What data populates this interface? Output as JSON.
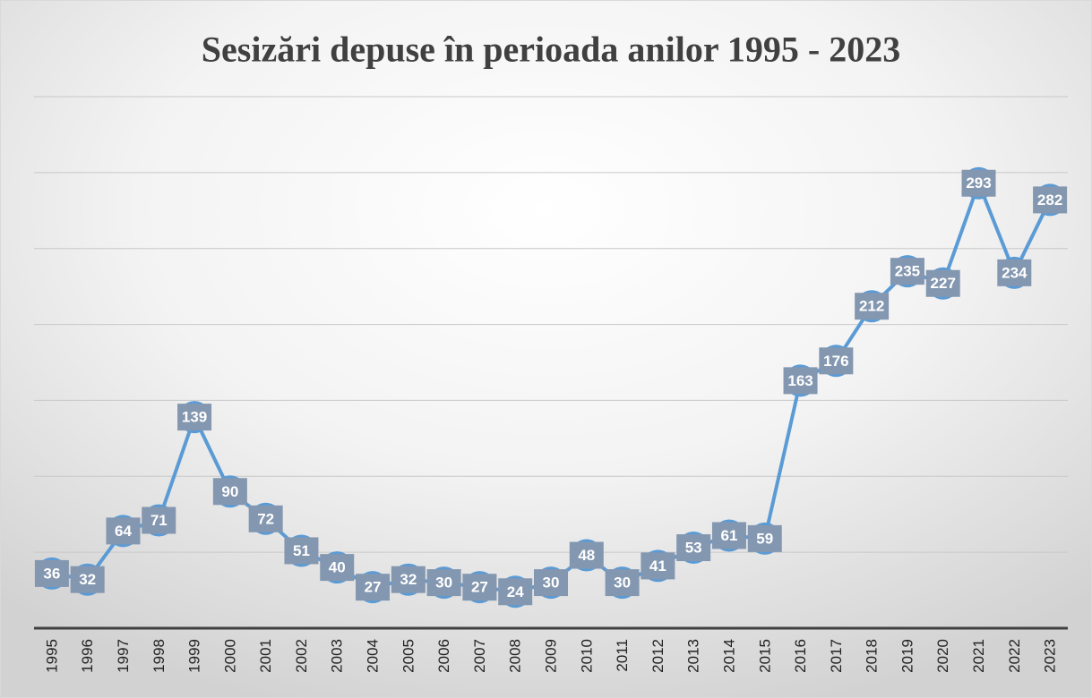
{
  "chart_data": {
    "type": "line",
    "title": "Sesizări depuse în perioada anilor 1995 - 2023",
    "categories": [
      "1995",
      "1996",
      "1997",
      "1998",
      "1999",
      "2000",
      "2001",
      "2002",
      "2003",
      "2004",
      "2005",
      "2006",
      "2007",
      "2008",
      "2009",
      "2010",
      "2011",
      "2012",
      "2013",
      "2014",
      "2015",
      "2016",
      "2017",
      "2018",
      "2019",
      "2020",
      "2021",
      "2022",
      "2023"
    ],
    "series": [
      {
        "name": "Sesizări",
        "color": "#5b9bd5",
        "values": [
          36,
          32,
          64,
          71,
          139,
          90,
          72,
          51,
          40,
          27,
          32,
          30,
          27,
          24,
          30,
          48,
          30,
          41,
          53,
          61,
          59,
          163,
          176,
          212,
          235,
          227,
          293,
          234,
          282
        ]
      }
    ],
    "ylim": [
      0,
      350
    ],
    "yticks": [
      0,
      50,
      100,
      150,
      200,
      250,
      300,
      350
    ],
    "grid": true
  }
}
